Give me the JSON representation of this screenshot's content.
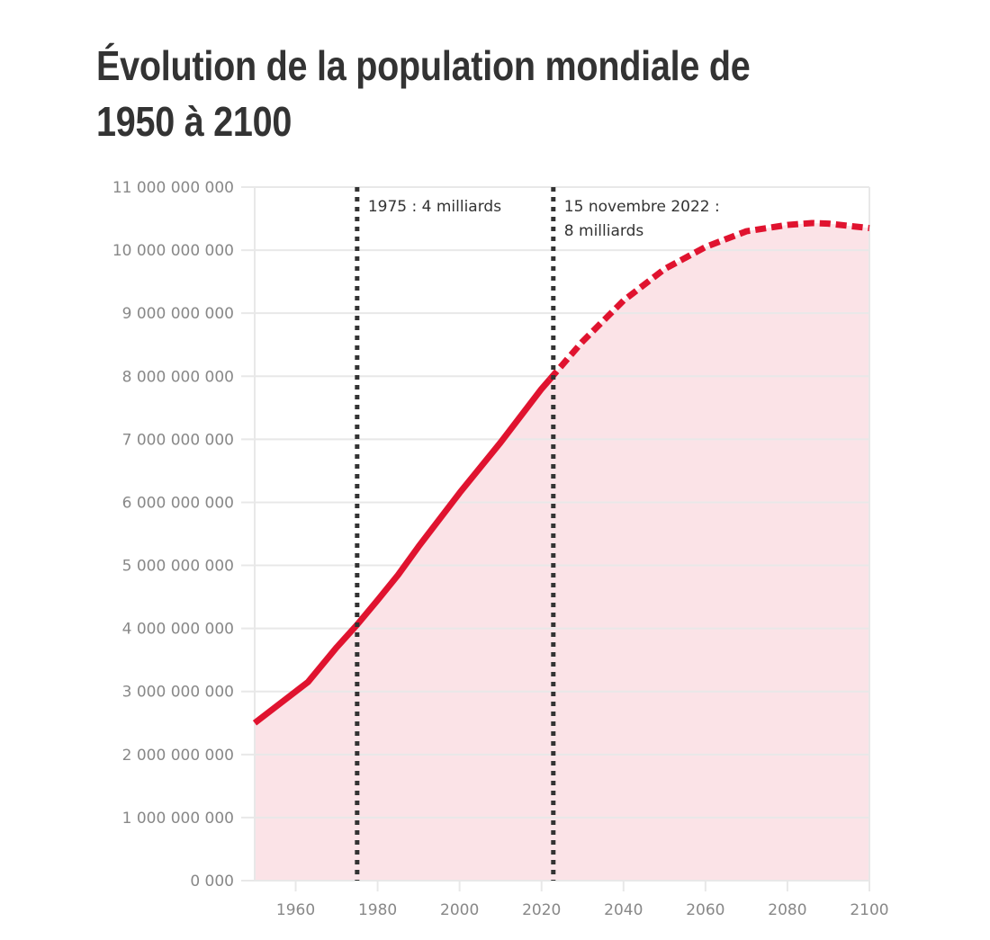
{
  "chart_data": {
    "type": "area",
    "title": "Évolution de la population mondiale de 1950 à 2100",
    "xlabel": "",
    "ylabel": "",
    "xlim": [
      1950,
      2100
    ],
    "ylim": [
      0,
      11000000000
    ],
    "x_ticks": [
      "1960",
      "1980",
      "2000",
      "2020",
      "2040",
      "2060",
      "2080",
      "2100"
    ],
    "y_ticks": [
      "0 000",
      "1 000 000 000",
      "2 000 000 000",
      "3 000 000 000",
      "4 000 000 000",
      "5 000 000 000",
      "6 000 000 000",
      "7 000 000 000",
      "8 000 000 000",
      "9 000 000 000",
      "10 000 000 000",
      "11 000 000 000"
    ],
    "grid": true,
    "series": [
      {
        "style": "solid",
        "x": [
          1950,
          1955,
          1960,
          1963,
          1970,
          1975,
          1980,
          1985,
          1990,
          2000,
          2010,
          2020,
          2022
        ],
        "y": [
          2500000000,
          2750000000,
          3000000000,
          3150000000,
          3700000000,
          4060000000,
          4450000000,
          4850000000,
          5300000000,
          6150000000,
          6950000000,
          7800000000,
          7950000000
        ]
      },
      {
        "style": "dashed",
        "x": [
          2022,
          2030,
          2040,
          2050,
          2060,
          2070,
          2080,
          2086,
          2090,
          2100
        ],
        "y": [
          7950000000,
          8550000000,
          9200000000,
          9700000000,
          10050000000,
          10300000000,
          10400000000,
          10430000000,
          10420000000,
          10350000000
        ]
      }
    ],
    "annotations": [
      {
        "x": 1975,
        "lines": [
          "1975 : 4 milliards"
        ]
      },
      {
        "x": 2022.87,
        "lines": [
          "15 novembre 2022 :",
          "8 milliards"
        ]
      }
    ],
    "colors": {
      "line": "#e0132f",
      "area": "#fbe3e7",
      "marker": "#333333",
      "grid": "#e8e8e8"
    }
  }
}
